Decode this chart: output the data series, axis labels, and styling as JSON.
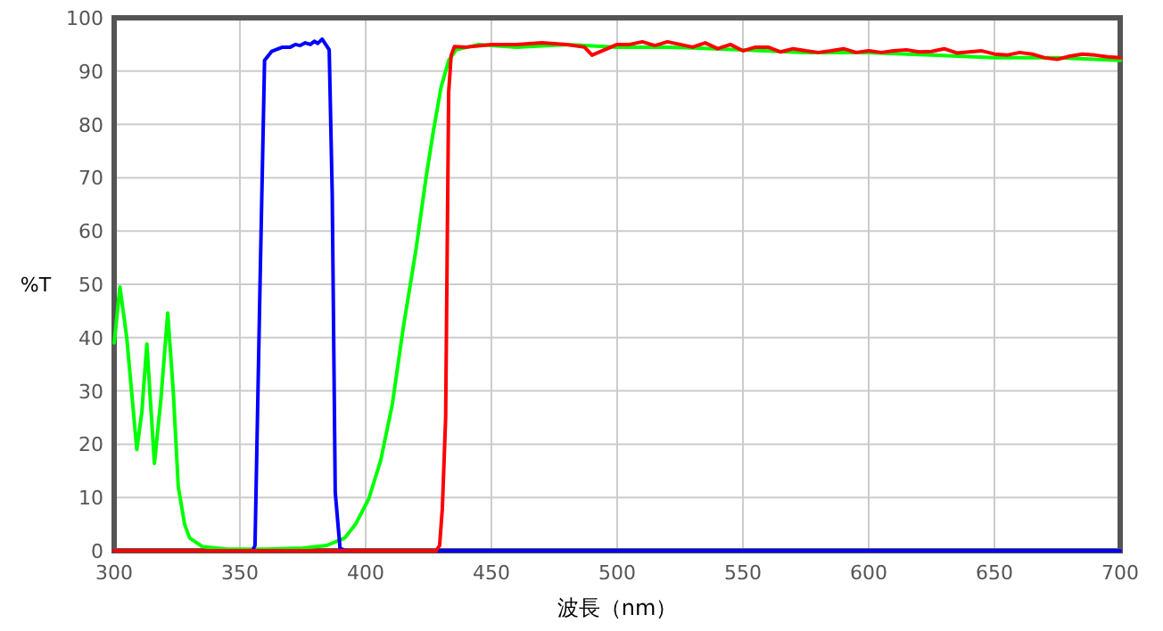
{
  "chart_data": {
    "type": "line",
    "xlabel": "波長（nm）",
    "ylabel": "%T",
    "xlim": [
      300,
      700
    ],
    "ylim": [
      0,
      100
    ],
    "xticks": [
      300,
      350,
      400,
      450,
      500,
      550,
      600,
      650,
      700
    ],
    "yticks": [
      0,
      10,
      20,
      30,
      40,
      50,
      60,
      70,
      80,
      90,
      100
    ],
    "grid": true,
    "marker": "none",
    "line_style": "solid",
    "series": [
      {
        "color": "#00ff00",
        "x": [
          300,
          302.3,
          305,
          309,
          311,
          313,
          316,
          318.5,
          321.3,
          323.5,
          325.5,
          328,
          330,
          335,
          345,
          360,
          375,
          384.5,
          391.7,
          396,
          401.2,
          406,
          410.6,
          415,
          420,
          424,
          427,
          430,
          433,
          436,
          445,
          460,
          480,
          500,
          520,
          550,
          575,
          600,
          625,
          650,
          675,
          700
        ],
        "values": [
          39,
          49.5,
          40,
          19,
          26,
          38.8,
          16.4,
          28,
          44.6,
          30,
          12,
          5,
          2.4,
          0.8,
          0.3,
          0.3,
          0.5,
          1,
          2.4,
          5,
          9.7,
          17,
          27.5,
          42,
          56.5,
          70,
          79,
          87,
          92,
          94,
          95,
          94.5,
          95,
          94.5,
          94.5,
          94,
          93.5,
          93.5,
          93,
          92.5,
          92.5,
          92
        ]
      },
      {
        "color": "#0000ff",
        "x": [
          300,
          355,
          356,
          358,
          359.8,
          362.6,
          367,
          370,
          372,
          374,
          376,
          378,
          379.6,
          381,
          382.7,
          385.5,
          386.7,
          387.9,
          389.8,
          392,
          700
        ],
        "values": [
          0,
          0,
          1,
          50,
          92,
          93.7,
          94.5,
          94.5,
          95,
          94.8,
          95.3,
          95,
          95.6,
          95.2,
          96,
          94,
          67,
          11,
          0.5,
          0,
          0
        ]
      },
      {
        "color": "#ff0000",
        "x": [
          300,
          428,
          429.4,
          430.5,
          431.8,
          433,
          434,
          435.3,
          440,
          450,
          460,
          470,
          480,
          487,
          490,
          495,
          500,
          505,
          510,
          515,
          520,
          525,
          530,
          535,
          540,
          545,
          550,
          555,
          560,
          565,
          570,
          575,
          580,
          585,
          590,
          595,
          600,
          605,
          610,
          615,
          620,
          625,
          630,
          635,
          640,
          645,
          650,
          655,
          660,
          665,
          670,
          675,
          680,
          685,
          690,
          695,
          700
        ],
        "values": [
          0,
          0,
          1,
          8,
          25,
          86,
          93,
          94.6,
          94.5,
          95,
          95,
          95.3,
          95,
          94.5,
          93,
          94,
          95,
          95,
          95.5,
          94.8,
          95.5,
          95,
          94.5,
          95.3,
          94.2,
          95,
          93.8,
          94.5,
          94.5,
          93.6,
          94.2,
          93.8,
          93.5,
          93.8,
          94.2,
          93.5,
          93.8,
          93.5,
          93.8,
          94,
          93.6,
          93.7,
          94.2,
          93.4,
          93.6,
          93.8,
          93.2,
          93,
          93.5,
          93.2,
          92.5,
          92.2,
          92.8,
          93.2,
          93,
          92.7,
          92.5
        ]
      }
    ]
  }
}
